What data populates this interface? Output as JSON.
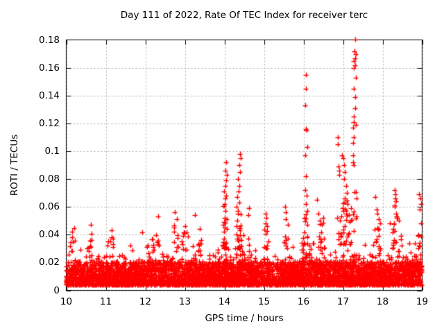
{
  "window": {
    "background": "#ffffff"
  },
  "chart_data": {
    "type": "scatter",
    "title": "Day 111 of 2022, Rate Of TEC Index for receiver terc",
    "xlabel": "GPS time / hours",
    "ylabel": "ROTI / TECUs",
    "xlim": [
      10,
      19
    ],
    "ylim": [
      0,
      0.18
    ],
    "xticks": [
      10,
      11,
      12,
      13,
      14,
      15,
      16,
      17,
      18,
      19
    ],
    "yticks": [
      0,
      0.02,
      0.04,
      0.06,
      0.08,
      0.1,
      0.12,
      0.14,
      0.16,
      0.18
    ],
    "grid": {
      "show": true,
      "color": "#a8a8a8",
      "dash": [
        2,
        3
      ]
    },
    "axis_color": "#000000",
    "background": "#ffffff",
    "legend": null,
    "marker": {
      "shape": "plus",
      "color": "#ff0000",
      "size": 7,
      "line_width": 1.4
    },
    "seed": 111,
    "density_model": {
      "core": {
        "n": 3800,
        "floor": 0.0035,
        "spread": 0.017,
        "pow": 1.7
      },
      "grass": {
        "n": 1500,
        "floor": 0.004,
        "sigma": 0.0105,
        "clip": 0.05
      },
      "envelope": [
        [
          10.0,
          1.15
        ],
        [
          10.15,
          1.3
        ],
        [
          10.35,
          0.95
        ],
        [
          10.6,
          1.3
        ],
        [
          10.85,
          0.9
        ],
        [
          11.1,
          1.25
        ],
        [
          11.35,
          0.9
        ],
        [
          11.6,
          1.0
        ],
        [
          11.85,
          0.95
        ],
        [
          12.05,
          1.1
        ],
        [
          12.25,
          1.3
        ],
        [
          12.45,
          1.0
        ],
        [
          12.6,
          1.1
        ],
        [
          12.8,
          1.2
        ],
        [
          13.0,
          1.25
        ],
        [
          13.15,
          0.95
        ],
        [
          13.35,
          1.2
        ],
        [
          13.55,
          0.85
        ],
        [
          13.75,
          1.0
        ],
        [
          14.0,
          1.35
        ],
        [
          14.2,
          1.05
        ],
        [
          14.4,
          1.35
        ],
        [
          14.6,
          1.1
        ],
        [
          14.8,
          0.9
        ],
        [
          15.05,
          1.15
        ],
        [
          15.3,
          0.9
        ],
        [
          15.55,
          1.1
        ],
        [
          15.75,
          0.95
        ],
        [
          16.05,
          1.3
        ],
        [
          16.25,
          1.05
        ],
        [
          16.45,
          1.15
        ],
        [
          16.65,
          0.9
        ],
        [
          16.9,
          1.05
        ],
        [
          17.1,
          1.2
        ],
        [
          17.3,
          1.2
        ],
        [
          17.5,
          0.95
        ],
        [
          17.7,
          1.0
        ],
        [
          17.9,
          1.1
        ],
        [
          18.1,
          1.0
        ],
        [
          18.3,
          1.25
        ],
        [
          18.5,
          1.1
        ],
        [
          18.7,
          1.2
        ],
        [
          18.9,
          1.25
        ],
        [
          19.0,
          1.1
        ]
      ]
    },
    "clusters": [
      [
        10.15,
        0.06,
        6,
        0.028,
        0.04
      ],
      [
        10.6,
        0.07,
        8,
        0.028,
        0.044
      ],
      [
        11.12,
        0.07,
        7,
        0.028,
        0.04
      ],
      [
        12.25,
        0.08,
        8,
        0.028,
        0.046
      ],
      [
        12.78,
        0.06,
        7,
        0.028,
        0.048
      ],
      [
        13.0,
        0.07,
        7,
        0.028,
        0.043
      ],
      [
        13.35,
        0.06,
        6,
        0.028,
        0.042
      ],
      [
        14.02,
        0.05,
        20,
        0.03,
        0.062
      ],
      [
        14.37,
        0.06,
        20,
        0.03,
        0.06
      ],
      [
        15.06,
        0.05,
        8,
        0.03,
        0.045
      ],
      [
        15.56,
        0.05,
        8,
        0.03,
        0.046
      ],
      [
        16.06,
        0.04,
        10,
        0.033,
        0.055
      ],
      [
        16.45,
        0.08,
        12,
        0.03,
        0.05
      ],
      [
        16.9,
        0.07,
        10,
        0.033,
        0.058
      ],
      [
        17.1,
        0.12,
        26,
        0.033,
        0.07
      ],
      [
        17.3,
        0.05,
        8,
        0.04,
        0.085
      ],
      [
        17.87,
        0.08,
        10,
        0.03,
        0.048
      ],
      [
        18.33,
        0.08,
        14,
        0.03,
        0.054
      ],
      [
        18.93,
        0.06,
        8,
        0.03,
        0.05
      ]
    ],
    "outliers": [
      [
        10.15,
        0.042
      ],
      [
        10.62,
        0.047
      ],
      [
        11.15,
        0.043
      ],
      [
        12.32,
        0.053
      ],
      [
        12.74,
        0.056
      ],
      [
        12.8,
        0.051
      ],
      [
        13.0,
        0.046
      ],
      [
        13.25,
        0.054
      ],
      [
        13.37,
        0.044
      ],
      [
        13.98,
        0.047
      ],
      [
        14.0,
        0.052
      ],
      [
        14.02,
        0.057
      ],
      [
        14.0,
        0.062
      ],
      [
        14.03,
        0.066
      ],
      [
        14.05,
        0.068
      ],
      [
        13.99,
        0.071
      ],
      [
        14.02,
        0.075
      ],
      [
        14.04,
        0.079
      ],
      [
        14.06,
        0.083
      ],
      [
        14.03,
        0.086
      ],
      [
        14.05,
        0.092
      ],
      [
        14.3,
        0.046
      ],
      [
        14.32,
        0.05
      ],
      [
        14.35,
        0.055
      ],
      [
        14.31,
        0.06
      ],
      [
        14.37,
        0.063
      ],
      [
        14.33,
        0.067
      ],
      [
        14.36,
        0.071
      ],
      [
        14.38,
        0.075
      ],
      [
        14.35,
        0.08
      ],
      [
        14.4,
        0.085
      ],
      [
        14.37,
        0.09
      ],
      [
        14.41,
        0.095
      ],
      [
        14.39,
        0.098
      ],
      [
        14.6,
        0.054
      ],
      [
        14.62,
        0.059
      ],
      [
        15.04,
        0.055
      ],
      [
        15.06,
        0.052
      ],
      [
        15.05,
        0.048
      ],
      [
        15.08,
        0.046
      ],
      [
        15.53,
        0.06
      ],
      [
        15.56,
        0.056
      ],
      [
        15.55,
        0.051
      ],
      [
        15.6,
        0.047
      ],
      [
        16.06,
        0.155
      ],
      [
        16.07,
        0.145
      ],
      [
        16.05,
        0.133
      ],
      [
        16.06,
        0.116
      ],
      [
        16.08,
        0.115
      ],
      [
        16.09,
        0.103
      ],
      [
        16.05,
        0.097
      ],
      [
        16.07,
        0.082
      ],
      [
        16.04,
        0.072
      ],
      [
        16.08,
        0.068
      ],
      [
        16.06,
        0.062
      ],
      [
        16.1,
        0.057
      ],
      [
        16.03,
        0.052
      ],
      [
        16.35,
        0.065
      ],
      [
        16.38,
        0.055
      ],
      [
        16.42,
        0.05
      ],
      [
        16.46,
        0.047
      ],
      [
        16.5,
        0.052
      ],
      [
        16.86,
        0.11
      ],
      [
        16.87,
        0.105
      ],
      [
        16.88,
        0.089
      ],
      [
        16.9,
        0.086
      ],
      [
        16.91,
        0.083
      ],
      [
        16.97,
        0.097
      ],
      [
        17.0,
        0.095
      ],
      [
        17.02,
        0.09
      ],
      [
        17.05,
        0.085
      ],
      [
        17.03,
        0.08
      ],
      [
        17.08,
        0.075
      ],
      [
        17.1,
        0.07
      ],
      [
        17.05,
        0.066
      ],
      [
        17.12,
        0.062
      ],
      [
        17.07,
        0.058
      ],
      [
        17.15,
        0.054
      ],
      [
        17.2,
        0.05
      ],
      [
        17.31,
        0.18
      ],
      [
        17.29,
        0.172
      ],
      [
        17.32,
        0.17
      ],
      [
        17.3,
        0.167
      ],
      [
        17.28,
        0.165
      ],
      [
        17.3,
        0.162
      ],
      [
        17.28,
        0.16
      ],
      [
        17.33,
        0.153
      ],
      [
        17.28,
        0.145
      ],
      [
        17.31,
        0.139
      ],
      [
        17.3,
        0.131
      ],
      [
        17.28,
        0.125
      ],
      [
        17.27,
        0.121
      ],
      [
        17.33,
        0.119
      ],
      [
        17.26,
        0.117
      ],
      [
        17.27,
        0.11
      ],
      [
        17.25,
        0.106
      ],
      [
        17.26,
        0.097
      ],
      [
        17.26,
        0.092
      ],
      [
        17.27,
        0.09
      ],
      [
        17.82,
        0.067
      ],
      [
        17.85,
        0.058
      ],
      [
        17.87,
        0.055
      ],
      [
        17.9,
        0.051
      ],
      [
        17.93,
        0.048
      ],
      [
        18.18,
        0.048
      ],
      [
        18.3,
        0.072
      ],
      [
        18.32,
        0.069
      ],
      [
        18.33,
        0.066
      ],
      [
        18.34,
        0.064
      ],
      [
        18.3,
        0.061
      ],
      [
        18.31,
        0.06
      ],
      [
        18.35,
        0.055
      ],
      [
        18.38,
        0.052
      ],
      [
        18.41,
        0.05
      ],
      [
        18.92,
        0.069
      ],
      [
        18.95,
        0.066
      ],
      [
        18.97,
        0.062
      ],
      [
        18.93,
        0.058
      ]
    ]
  }
}
